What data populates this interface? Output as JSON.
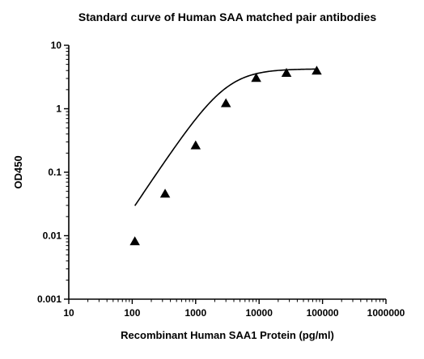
{
  "chart_data": {
    "type": "scatter",
    "title": "Standard curve of Human SAA matched pair antibodies",
    "xlabel": "Recombinant Human SAA1 Protein (pg/ml)",
    "ylabel": "OD450",
    "x_scale": "log",
    "y_scale": "log",
    "xlim": [
      10,
      1000000
    ],
    "ylim": [
      0.001,
      10
    ],
    "x_ticks": [
      {
        "value": 10,
        "label": "10"
      },
      {
        "value": 100,
        "label": "100"
      },
      {
        "value": 1000,
        "label": "1000"
      },
      {
        "value": 10000,
        "label": "10000"
      },
      {
        "value": 100000,
        "label": "100000"
      },
      {
        "value": 1000000,
        "label": "1000000"
      }
    ],
    "y_ticks": [
      {
        "value": 0.001,
        "label": "0.001"
      },
      {
        "value": 0.01,
        "label": "0.01"
      },
      {
        "value": 0.1,
        "label": "0.1"
      },
      {
        "value": 1,
        "label": "1"
      },
      {
        "value": 10,
        "label": "10"
      }
    ],
    "grid": false,
    "legend": "none",
    "marker": "triangle",
    "color": "#000000",
    "series": [
      {
        "x": [
          110,
          330,
          1000,
          3000,
          9000,
          27000,
          81000
        ],
        "y": [
          0.008,
          0.045,
          0.26,
          1.2,
          3.0,
          3.6,
          3.9
        ]
      }
    ],
    "fit": {
      "type": "4PL",
      "bottom": 0.0,
      "top": 4.25,
      "ec50": 3000,
      "hill": 1.5
    }
  }
}
